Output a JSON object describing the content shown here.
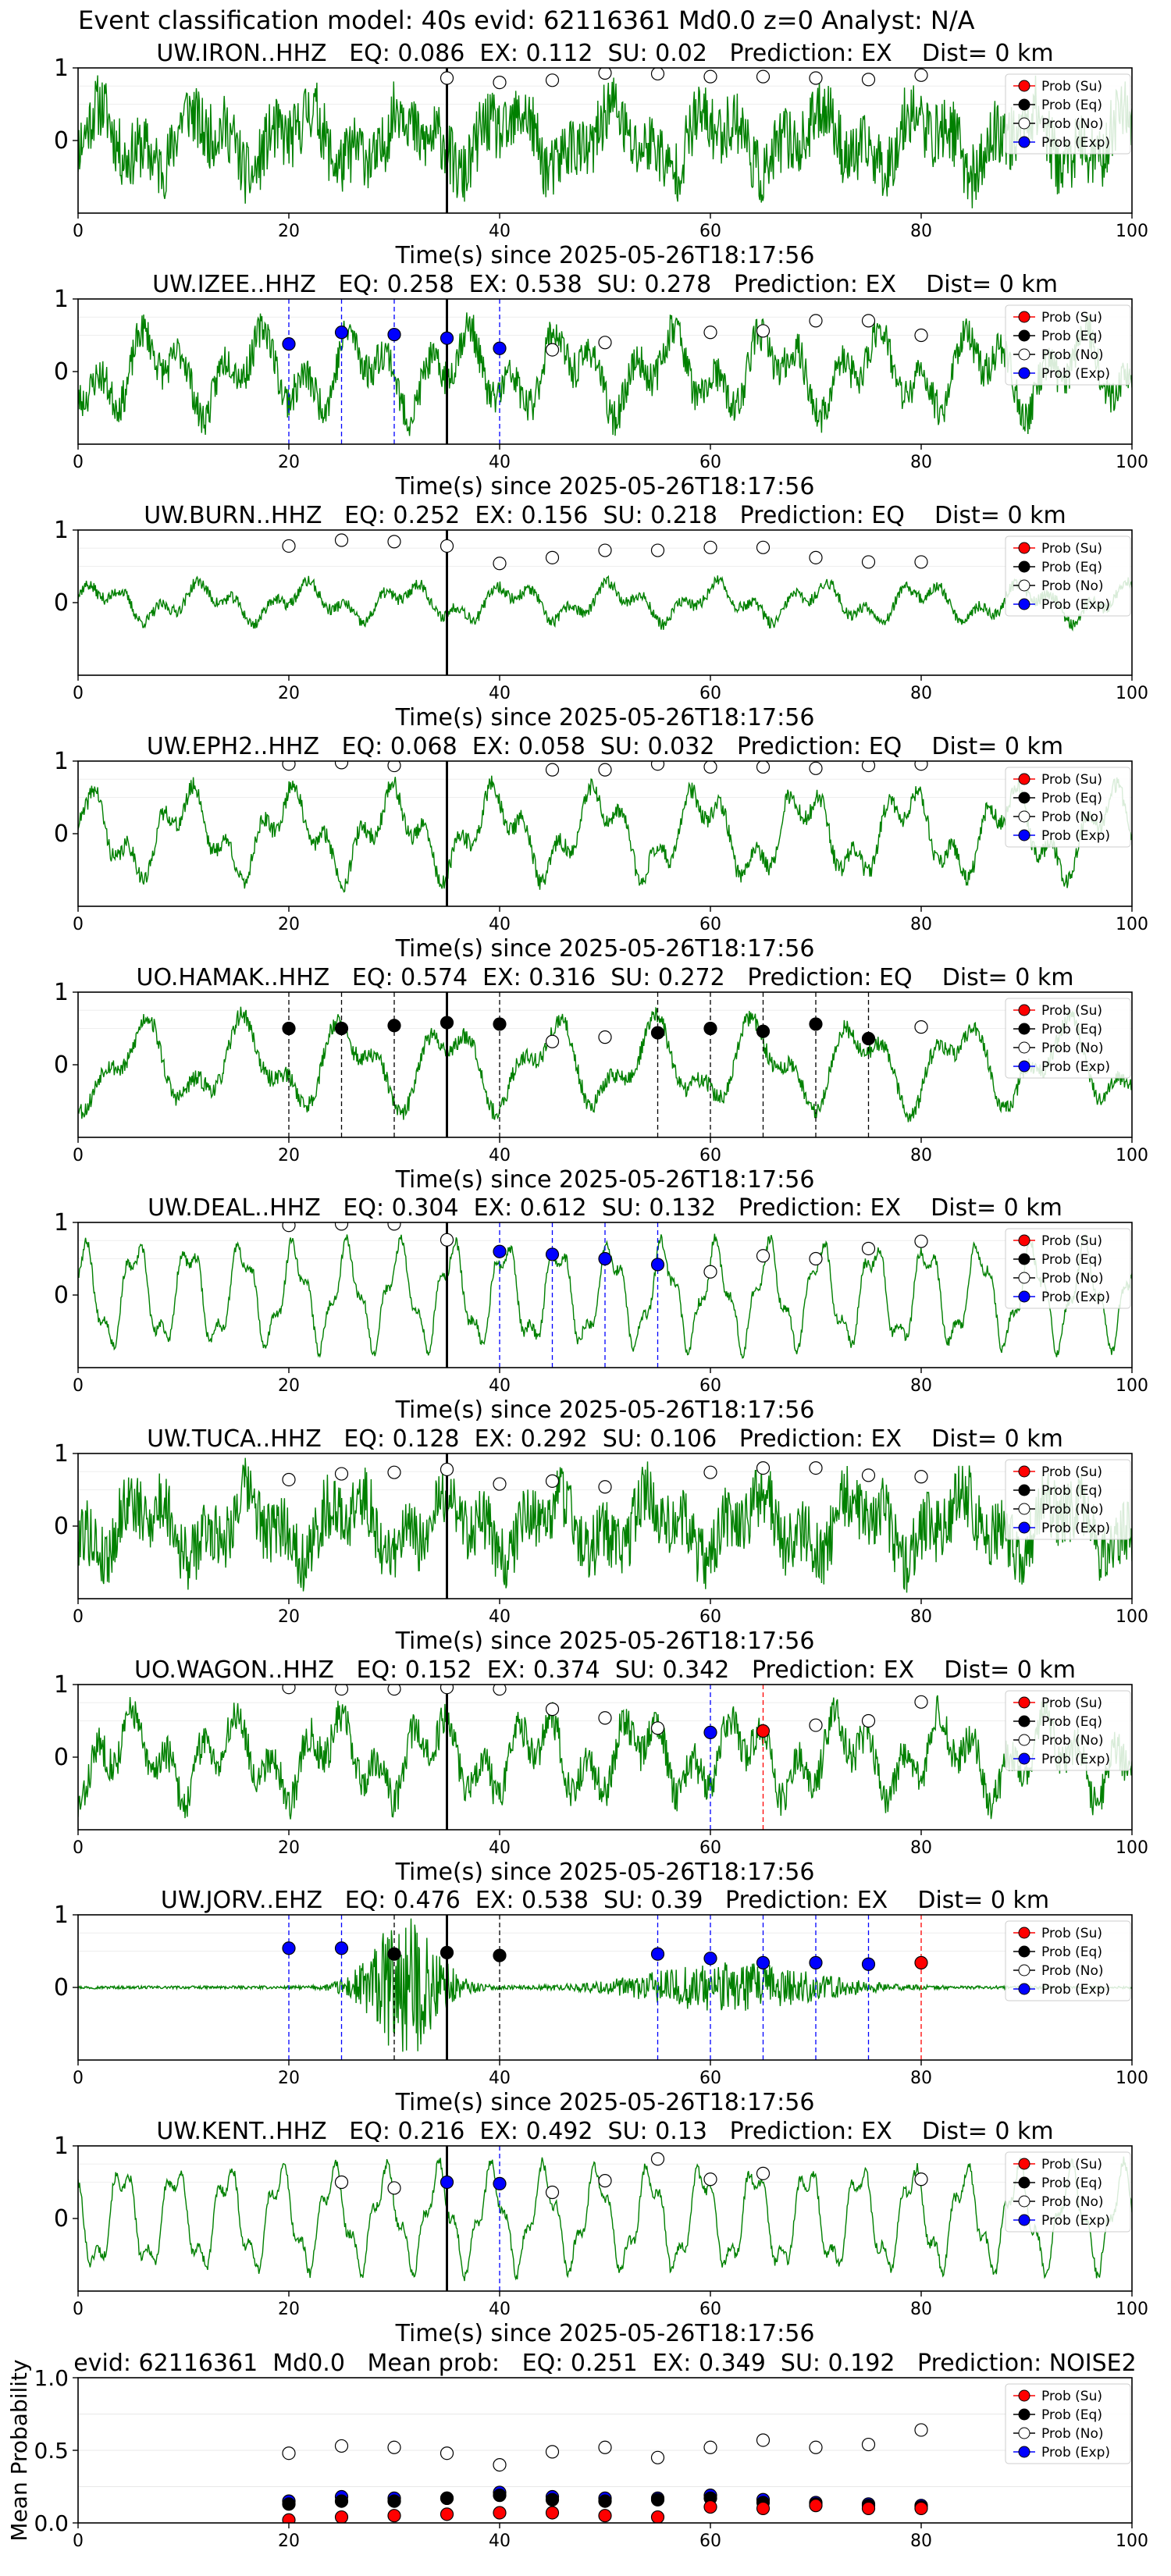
{
  "figure_title": "Event classification model: 40s evid: 62116361 Md0.0 z=0 Analyst: N/A",
  "colors": {
    "waveform": "#008000",
    "su": "#ff0000",
    "eq": "#000000",
    "no": "#ffffff",
    "exp": "#0000ff",
    "pick_line": "#000000"
  },
  "legend_labels": [
    "Prob (Su)",
    "Prob (Eq)",
    "Prob (No)",
    "Prob (Exp)"
  ],
  "x_tick_labels": [
    "0",
    "20",
    "40",
    "60",
    "80",
    "100"
  ],
  "chart_data": [
    {
      "type": "line",
      "title": "UW.IRON..HHZ   EQ: 0.086  EX: 0.112  SU: 0.02   Prediction: EX    Dist= 0 km",
      "xlabel": "Time(s) since 2025-05-26T18:17:56",
      "xlim": [
        0,
        100
      ],
      "ylim": [
        -1,
        1
      ],
      "y_tick_labels": [
        "1",
        "0"
      ],
      "pick_time": 35,
      "legend": "right",
      "wave_style": "noisy",
      "wave_seed": 11,
      "markers": [
        {
          "t": 35,
          "prob": 0.86,
          "class": "No"
        },
        {
          "t": 40,
          "prob": 0.8,
          "class": "No"
        },
        {
          "t": 45,
          "prob": 0.83,
          "class": "No"
        },
        {
          "t": 50,
          "prob": 0.93,
          "class": "No"
        },
        {
          "t": 55,
          "prob": 0.92,
          "class": "No"
        },
        {
          "t": 60,
          "prob": 0.88,
          "class": "No"
        },
        {
          "t": 65,
          "prob": 0.88,
          "class": "No"
        },
        {
          "t": 70,
          "prob": 0.86,
          "class": "No"
        },
        {
          "t": 75,
          "prob": 0.84,
          "class": "No"
        },
        {
          "t": 80,
          "prob": 0.9,
          "class": "No"
        }
      ],
      "dashed_lines": []
    },
    {
      "type": "line",
      "title": "UW.IZEE..HHZ   EQ: 0.258  EX: 0.538  SU: 0.278   Prediction: EX    Dist= 0 km",
      "xlabel": "Time(s) since 2025-05-26T18:17:56",
      "xlim": [
        0,
        100
      ],
      "ylim": [
        -1,
        1
      ],
      "y_tick_labels": [
        "1",
        "0"
      ],
      "pick_time": 35,
      "legend": "right",
      "wave_style": "mixed",
      "wave_seed": 23,
      "markers": [
        {
          "t": 20,
          "prob": 0.38,
          "class": "Exp"
        },
        {
          "t": 25,
          "prob": 0.54,
          "class": "Exp"
        },
        {
          "t": 30,
          "prob": 0.51,
          "class": "Exp"
        },
        {
          "t": 35,
          "prob": 0.46,
          "class": "Exp"
        },
        {
          "t": 40,
          "prob": 0.32,
          "class": "Exp"
        },
        {
          "t": 45,
          "prob": 0.3,
          "class": "No"
        },
        {
          "t": 50,
          "prob": 0.4,
          "class": "No"
        },
        {
          "t": 60,
          "prob": 0.54,
          "class": "No"
        },
        {
          "t": 65,
          "prob": 0.56,
          "class": "No"
        },
        {
          "t": 70,
          "prob": 0.7,
          "class": "No"
        },
        {
          "t": 75,
          "prob": 0.7,
          "class": "No"
        },
        {
          "t": 80,
          "prob": 0.5,
          "class": "No"
        }
      ],
      "dashed_lines": [
        {
          "t": 20,
          "class": "Exp"
        },
        {
          "t": 25,
          "class": "Exp"
        },
        {
          "t": 30,
          "class": "Exp"
        },
        {
          "t": 40,
          "class": "Exp"
        }
      ]
    },
    {
      "type": "line",
      "title": "UW.BURN..HHZ   EQ: 0.252  EX: 0.156  SU: 0.218   Prediction: EQ    Dist= 0 km",
      "xlabel": "Time(s) since 2025-05-26T18:17:56",
      "xlim": [
        0,
        100
      ],
      "ylim": [
        -1,
        1
      ],
      "y_tick_labels": [
        "1",
        "0"
      ],
      "pick_time": 35,
      "legend": "right",
      "wave_style": "smooth",
      "wave_seed": 37,
      "markers": [
        {
          "t": 20,
          "prob": 0.78,
          "class": "No"
        },
        {
          "t": 25,
          "prob": 0.86,
          "class": "No"
        },
        {
          "t": 30,
          "prob": 0.84,
          "class": "No"
        },
        {
          "t": 35,
          "prob": 0.78,
          "class": "No"
        },
        {
          "t": 40,
          "prob": 0.54,
          "class": "No"
        },
        {
          "t": 45,
          "prob": 0.62,
          "class": "No"
        },
        {
          "t": 50,
          "prob": 0.72,
          "class": "No"
        },
        {
          "t": 55,
          "prob": 0.72,
          "class": "No"
        },
        {
          "t": 60,
          "prob": 0.76,
          "class": "No"
        },
        {
          "t": 65,
          "prob": 0.76,
          "class": "No"
        },
        {
          "t": 70,
          "prob": 0.62,
          "class": "No"
        },
        {
          "t": 75,
          "prob": 0.56,
          "class": "No"
        },
        {
          "t": 80,
          "prob": 0.56,
          "class": "No"
        }
      ],
      "dashed_lines": []
    },
    {
      "type": "line",
      "title": "UW.EPH2..HHZ   EQ: 0.068  EX: 0.058  SU: 0.032   Prediction: EQ    Dist= 0 km",
      "xlabel": "Time(s) since 2025-05-26T18:17:56",
      "xlim": [
        0,
        100
      ],
      "ylim": [
        -1,
        1
      ],
      "y_tick_labels": [
        "1",
        "0"
      ],
      "pick_time": 35,
      "legend": "right",
      "wave_style": "oscill",
      "wave_seed": 41,
      "markers": [
        {
          "t": 20,
          "prob": 0.96,
          "class": "No"
        },
        {
          "t": 25,
          "prob": 0.98,
          "class": "No"
        },
        {
          "t": 30,
          "prob": 0.94,
          "class": "No"
        },
        {
          "t": 45,
          "prob": 0.88,
          "class": "No"
        },
        {
          "t": 50,
          "prob": 0.88,
          "class": "No"
        },
        {
          "t": 55,
          "prob": 0.96,
          "class": "No"
        },
        {
          "t": 60,
          "prob": 0.92,
          "class": "No"
        },
        {
          "t": 65,
          "prob": 0.92,
          "class": "No"
        },
        {
          "t": 70,
          "prob": 0.9,
          "class": "No"
        },
        {
          "t": 75,
          "prob": 0.94,
          "class": "No"
        },
        {
          "t": 80,
          "prob": 0.96,
          "class": "No"
        }
      ],
      "dashed_lines": []
    },
    {
      "type": "line",
      "title": "UO.HAMAK..HHZ   EQ: 0.574  EX: 0.316  SU: 0.272   Prediction: EQ    Dist= 0 km",
      "xlabel": "Time(s) since 2025-05-26T18:17:56",
      "xlim": [
        0,
        100
      ],
      "ylim": [
        -1,
        1
      ],
      "y_tick_labels": [
        "1",
        "0"
      ],
      "pick_time": 35,
      "legend": "right",
      "wave_style": "oscill",
      "wave_seed": 53,
      "markers": [
        {
          "t": 20,
          "prob": 0.5,
          "class": "Eq"
        },
        {
          "t": 25,
          "prob": 0.5,
          "class": "Eq"
        },
        {
          "t": 30,
          "prob": 0.54,
          "class": "Eq"
        },
        {
          "t": 35,
          "prob": 0.58,
          "class": "Eq"
        },
        {
          "t": 40,
          "prob": 0.56,
          "class": "Eq"
        },
        {
          "t": 45,
          "prob": 0.32,
          "class": "No"
        },
        {
          "t": 50,
          "prob": 0.38,
          "class": "No"
        },
        {
          "t": 55,
          "prob": 0.44,
          "class": "Eq"
        },
        {
          "t": 60,
          "prob": 0.5,
          "class": "Eq"
        },
        {
          "t": 65,
          "prob": 0.46,
          "class": "Eq"
        },
        {
          "t": 70,
          "prob": 0.56,
          "class": "Eq"
        },
        {
          "t": 75,
          "prob": 0.36,
          "class": "Eq"
        },
        {
          "t": 80,
          "prob": 0.52,
          "class": "No"
        }
      ],
      "dashed_lines": [
        {
          "t": 20,
          "class": "Eq"
        },
        {
          "t": 25,
          "class": "Eq"
        },
        {
          "t": 30,
          "class": "Eq"
        },
        {
          "t": 40,
          "class": "Eq"
        },
        {
          "t": 55,
          "class": "Eq"
        },
        {
          "t": 60,
          "class": "Eq"
        },
        {
          "t": 65,
          "class": "Eq"
        },
        {
          "t": 70,
          "class": "Eq"
        },
        {
          "t": 75,
          "class": "Eq"
        }
      ]
    },
    {
      "type": "line",
      "title": "UW.DEAL..HHZ   EQ: 0.304  EX: 0.612  SU: 0.132   Prediction: EX    Dist= 0 km",
      "xlabel": "Time(s) since 2025-05-26T18:17:56",
      "xlim": [
        0,
        100
      ],
      "ylim": [
        -1,
        1
      ],
      "y_tick_labels": [
        "1",
        "0"
      ],
      "pick_time": 35,
      "legend": "right",
      "wave_style": "regular",
      "wave_seed": 67,
      "markers": [
        {
          "t": 20,
          "prob": 0.96,
          "class": "No"
        },
        {
          "t": 25,
          "prob": 0.98,
          "class": "No"
        },
        {
          "t": 30,
          "prob": 0.98,
          "class": "No"
        },
        {
          "t": 35,
          "prob": 0.76,
          "class": "No"
        },
        {
          "t": 40,
          "prob": 0.6,
          "class": "Exp"
        },
        {
          "t": 45,
          "prob": 0.56,
          "class": "Exp"
        },
        {
          "t": 50,
          "prob": 0.5,
          "class": "Exp"
        },
        {
          "t": 55,
          "prob": 0.42,
          "class": "Exp"
        },
        {
          "t": 60,
          "prob": 0.32,
          "class": "No"
        },
        {
          "t": 65,
          "prob": 0.54,
          "class": "No"
        },
        {
          "t": 70,
          "prob": 0.5,
          "class": "No"
        },
        {
          "t": 75,
          "prob": 0.64,
          "class": "No"
        },
        {
          "t": 80,
          "prob": 0.74,
          "class": "No"
        }
      ],
      "dashed_lines": [
        {
          "t": 40,
          "class": "Exp"
        },
        {
          "t": 45,
          "class": "Exp"
        },
        {
          "t": 50,
          "class": "Exp"
        },
        {
          "t": 55,
          "class": "Exp"
        }
      ]
    },
    {
      "type": "line",
      "title": "UW.TUCA..HHZ   EQ: 0.128  EX: 0.292  SU: 0.106   Prediction: EX    Dist= 0 km",
      "xlabel": "Time(s) since 2025-05-26T18:17:56",
      "xlim": [
        0,
        100
      ],
      "ylim": [
        -1,
        1
      ],
      "y_tick_labels": [
        "1",
        "0"
      ],
      "pick_time": 35,
      "legend": "right",
      "wave_style": "noisy",
      "wave_seed": 79,
      "markers": [
        {
          "t": 20,
          "prob": 0.64,
          "class": "No"
        },
        {
          "t": 25,
          "prob": 0.72,
          "class": "No"
        },
        {
          "t": 30,
          "prob": 0.74,
          "class": "No"
        },
        {
          "t": 35,
          "prob": 0.78,
          "class": "No"
        },
        {
          "t": 40,
          "prob": 0.58,
          "class": "No"
        },
        {
          "t": 45,
          "prob": 0.62,
          "class": "No"
        },
        {
          "t": 50,
          "prob": 0.54,
          "class": "No"
        },
        {
          "t": 60,
          "prob": 0.74,
          "class": "No"
        },
        {
          "t": 65,
          "prob": 0.8,
          "class": "No"
        },
        {
          "t": 70,
          "prob": 0.8,
          "class": "No"
        },
        {
          "t": 75,
          "prob": 0.7,
          "class": "No"
        },
        {
          "t": 80,
          "prob": 0.68,
          "class": "No"
        }
      ],
      "dashed_lines": []
    },
    {
      "type": "line",
      "title": "UO.WAGON..HHZ   EQ: 0.152  EX: 0.374  SU: 0.342   Prediction: EX    Dist= 0 km",
      "xlabel": "Time(s) since 2025-05-26T18:17:56",
      "xlim": [
        0,
        100
      ],
      "ylim": [
        -1,
        1
      ],
      "y_tick_labels": [
        "1",
        "0"
      ],
      "pick_time": 35,
      "legend": "right",
      "wave_style": "mixed",
      "wave_seed": 83,
      "markers": [
        {
          "t": 20,
          "prob": 0.96,
          "class": "No"
        },
        {
          "t": 25,
          "prob": 0.94,
          "class": "No"
        },
        {
          "t": 30,
          "prob": 0.94,
          "class": "No"
        },
        {
          "t": 35,
          "prob": 0.96,
          "class": "No"
        },
        {
          "t": 40,
          "prob": 0.94,
          "class": "No"
        },
        {
          "t": 45,
          "prob": 0.66,
          "class": "No"
        },
        {
          "t": 50,
          "prob": 0.54,
          "class": "No"
        },
        {
          "t": 55,
          "prob": 0.4,
          "class": "No"
        },
        {
          "t": 60,
          "prob": 0.34,
          "class": "Exp"
        },
        {
          "t": 65,
          "prob": 0.36,
          "class": "Su"
        },
        {
          "t": 70,
          "prob": 0.44,
          "class": "No"
        },
        {
          "t": 75,
          "prob": 0.5,
          "class": "No"
        },
        {
          "t": 80,
          "prob": 0.76,
          "class": "No"
        }
      ],
      "dashed_lines": [
        {
          "t": 60,
          "class": "Exp"
        },
        {
          "t": 65,
          "class": "Su"
        }
      ]
    },
    {
      "type": "line",
      "title": "UW.JORV..EHZ   EQ: 0.476  EX: 0.538  SU: 0.39   Prediction: EX    Dist= 0 km",
      "xlabel": "Time(s) since 2025-05-26T18:17:56",
      "xlim": [
        0,
        100
      ],
      "ylim": [
        -1,
        1
      ],
      "y_tick_labels": [
        "1",
        "0"
      ],
      "pick_time": 35,
      "legend": "right",
      "wave_style": "burst",
      "wave_seed": 97,
      "markers": [
        {
          "t": 20,
          "prob": 0.54,
          "class": "Exp"
        },
        {
          "t": 25,
          "prob": 0.54,
          "class": "Exp"
        },
        {
          "t": 30,
          "prob": 0.46,
          "class": "Eq"
        },
        {
          "t": 35,
          "prob": 0.48,
          "class": "Eq"
        },
        {
          "t": 40,
          "prob": 0.44,
          "class": "Eq"
        },
        {
          "t": 55,
          "prob": 0.46,
          "class": "Exp"
        },
        {
          "t": 60,
          "prob": 0.4,
          "class": "Exp"
        },
        {
          "t": 65,
          "prob": 0.34,
          "class": "Exp"
        },
        {
          "t": 70,
          "prob": 0.34,
          "class": "Exp"
        },
        {
          "t": 75,
          "prob": 0.32,
          "class": "Exp"
        },
        {
          "t": 80,
          "prob": 0.34,
          "class": "Su"
        }
      ],
      "dashed_lines": [
        {
          "t": 20,
          "class": "Exp"
        },
        {
          "t": 25,
          "class": "Exp"
        },
        {
          "t": 30,
          "class": "Eq"
        },
        {
          "t": 40,
          "class": "Eq"
        },
        {
          "t": 55,
          "class": "Exp"
        },
        {
          "t": 60,
          "class": "Exp"
        },
        {
          "t": 65,
          "class": "Exp"
        },
        {
          "t": 70,
          "class": "Exp"
        },
        {
          "t": 75,
          "class": "Exp"
        },
        {
          "t": 80,
          "class": "Su"
        }
      ]
    },
    {
      "type": "line",
      "title": "UW.KENT..HHZ   EQ: 0.216  EX: 0.492  SU: 0.13   Prediction: EX    Dist= 0 km",
      "xlabel": "Time(s) since 2025-05-26T18:17:56",
      "xlim": [
        0,
        100
      ],
      "ylim": [
        -1,
        1
      ],
      "y_tick_labels": [
        "1",
        "0"
      ],
      "pick_time": 35,
      "legend": "right",
      "wave_style": "regular",
      "wave_seed": 101,
      "markers": [
        {
          "t": 25,
          "prob": 0.5,
          "class": "No"
        },
        {
          "t": 30,
          "prob": 0.42,
          "class": "No"
        },
        {
          "t": 35,
          "prob": 0.5,
          "class": "Exp"
        },
        {
          "t": 40,
          "prob": 0.48,
          "class": "Exp"
        },
        {
          "t": 45,
          "prob": 0.36,
          "class": "No"
        },
        {
          "t": 50,
          "prob": 0.52,
          "class": "No"
        },
        {
          "t": 55,
          "prob": 0.82,
          "class": "No"
        },
        {
          "t": 60,
          "prob": 0.54,
          "class": "No"
        },
        {
          "t": 65,
          "prob": 0.62,
          "class": "No"
        },
        {
          "t": 80,
          "prob": 0.54,
          "class": "No"
        }
      ],
      "dashed_lines": [
        {
          "t": 40,
          "class": "Exp"
        }
      ]
    },
    {
      "type": "scatter",
      "title": "evid: 62116361  Md0.0   Mean prob:   EQ: 0.251  EX: 0.349  SU: 0.192   Prediction: NOISE2",
      "xlabel": "",
      "ylabel": "Mean Probability",
      "xlim": [
        0,
        100
      ],
      "ylim": [
        0,
        1
      ],
      "y_tick_labels": [
        "0.0",
        "0.5",
        "1.0"
      ],
      "legend": "right",
      "x": [
        20,
        25,
        30,
        35,
        40,
        45,
        50,
        55,
        60,
        65,
        70,
        75,
        80
      ],
      "series": [
        {
          "class": "No",
          "values": [
            0.48,
            0.53,
            0.52,
            0.48,
            0.4,
            0.49,
            0.52,
            0.45,
            0.52,
            0.57,
            0.52,
            0.54,
            0.64
          ]
        },
        {
          "class": "Exp",
          "values": [
            0.15,
            0.18,
            0.17,
            0.17,
            0.21,
            0.18,
            0.17,
            0.17,
            0.19,
            0.16,
            0.14,
            0.13,
            0.12
          ]
        },
        {
          "class": "Eq",
          "values": [
            0.13,
            0.15,
            0.15,
            0.17,
            0.19,
            0.16,
            0.15,
            0.16,
            0.17,
            0.14,
            0.13,
            0.12,
            0.11
          ]
        },
        {
          "class": "Su",
          "values": [
            0.02,
            0.04,
            0.05,
            0.06,
            0.07,
            0.07,
            0.05,
            0.04,
            0.11,
            0.1,
            0.12,
            0.1,
            0.1
          ]
        }
      ]
    }
  ]
}
